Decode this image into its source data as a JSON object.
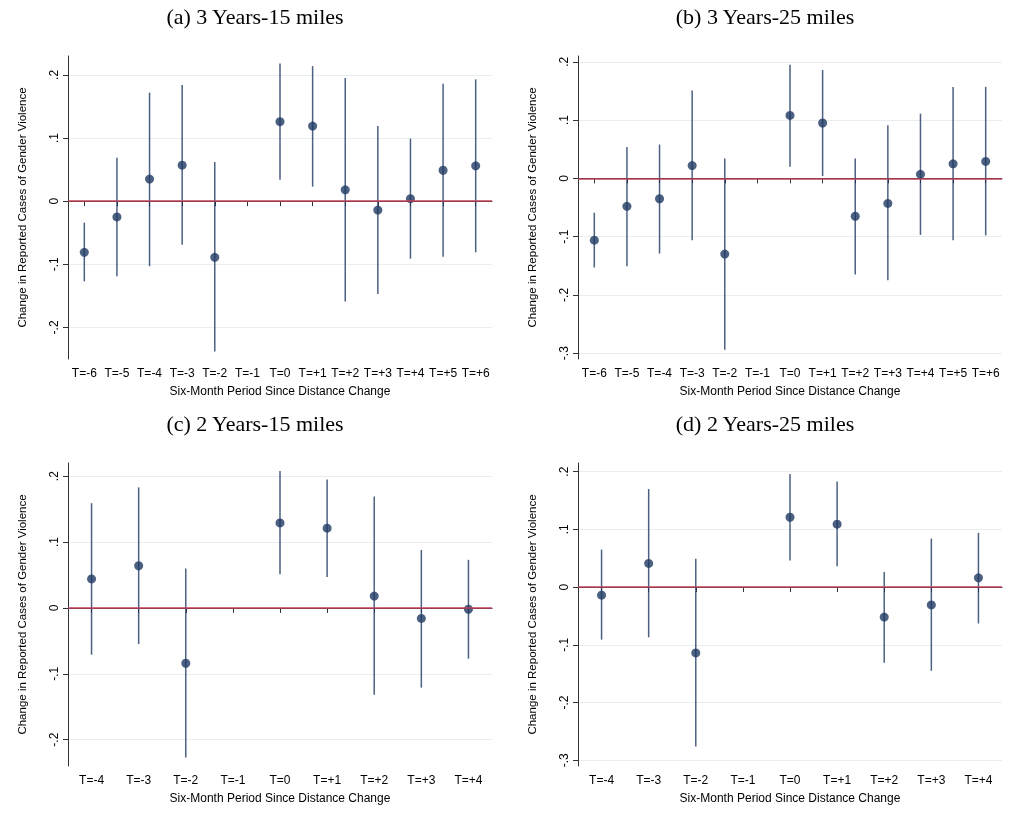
{
  "chart_data": [
    {
      "type": "scatter",
      "title": "(a) 3 Years-15 miles",
      "xlabel": "Six-Month Period Since Distance Change",
      "ylabel": "Change in Reported Cases of Gender Violence",
      "categories": [
        "T=-6",
        "T=-5",
        "T=-4",
        "T=-3",
        "T=-2",
        "T=-1",
        "T=0",
        "T=+1",
        "T=+2",
        "T=+3",
        "T=+4",
        "T=+5",
        "T=+6"
      ],
      "series": [
        {
          "color": "#1f3a63",
          "values": [
            -0.081,
            -0.025,
            0.035,
            0.057,
            -0.089,
            null,
            0.126,
            0.119,
            0.018,
            -0.014,
            0.004,
            0.049,
            0.056
          ],
          "errors": [
            [
              -0.127,
              -0.034
            ],
            [
              -0.119,
              0.069
            ],
            [
              -0.103,
              0.172
            ],
            [
              -0.069,
              0.184
            ],
            [
              -0.238,
              0.062
            ],
            null,
            [
              0.034,
              0.218
            ],
            [
              0.023,
              0.214
            ],
            [
              -0.159,
              0.195
            ],
            [
              -0.147,
              0.119
            ],
            [
              -0.091,
              0.099
            ],
            [
              -0.088,
              0.186
            ],
            [
              -0.081,
              0.193
            ]
          ]
        }
      ],
      "ylim": [
        -0.25,
        0.23
      ],
      "yticks": [
        {
          "value": -0.2,
          "label": "-.2"
        },
        {
          "value": -0.1,
          "label": "-.1"
        },
        {
          "value": 0,
          "label": "0"
        },
        {
          "value": 0.1,
          "label": ".1"
        },
        {
          "value": 0.2,
          "label": ".2"
        }
      ],
      "ref_lines": [
        {
          "axis": "y",
          "value": 0,
          "color": "#c0405a"
        }
      ],
      "grid": "y",
      "marker": "circle"
    },
    {
      "type": "scatter",
      "title": "(b) 3 Years-25 miles",
      "xlabel": "Six-Month Period Since Distance Change",
      "ylabel": "Change in Reported Cases of Gender Violence",
      "categories": [
        "T=-6",
        "T=-5",
        "T=-4",
        "T=-3",
        "T=-2",
        "T=-1",
        "T=0",
        "T=+1",
        "T=+2",
        "T=+3",
        "T=+4",
        "T=+5",
        "T=+6"
      ],
      "series": [
        {
          "color": "#1f3a63",
          "values": [
            -0.106,
            -0.048,
            -0.035,
            0.022,
            -0.13,
            null,
            0.108,
            0.095,
            -0.065,
            -0.043,
            0.007,
            0.025,
            0.029
          ],
          "errors": [
            [
              -0.153,
              -0.059
            ],
            [
              -0.151,
              0.054
            ],
            [
              -0.129,
              0.058
            ],
            [
              -0.106,
              0.151
            ],
            [
              -0.294,
              0.034
            ],
            null,
            [
              0.02,
              0.195
            ],
            [
              0.004,
              0.186
            ],
            [
              -0.165,
              0.034
            ],
            [
              -0.175,
              0.091
            ],
            [
              -0.097,
              0.111
            ],
            [
              -0.106,
              0.157
            ],
            [
              -0.098,
              0.157
            ]
          ]
        }
      ],
      "ylim": [
        -0.31,
        0.21
      ],
      "yticks": [
        {
          "value": -0.3,
          "label": "-.3"
        },
        {
          "value": -0.2,
          "label": "-.2"
        },
        {
          "value": -0.1,
          "label": "-.1"
        },
        {
          "value": 0,
          "label": "0"
        },
        {
          "value": 0.1,
          "label": ".1"
        },
        {
          "value": 0.2,
          "label": ".2"
        }
      ],
      "ref_lines": [
        {
          "axis": "y",
          "value": 0,
          "color": "#c0405a"
        }
      ],
      "grid": "y",
      "marker": "circle"
    },
    {
      "type": "scatter",
      "title": "(c) 2 Years-15 miles",
      "xlabel": "Six-Month Period Since Distance Change",
      "ylabel": "Change in Reported Cases of Gender Violence",
      "categories": [
        "T=-4",
        "T=-3",
        "T=-2",
        "T=-1",
        "T=0",
        "T=+1",
        "T=+2",
        "T=+3",
        "T=+4"
      ],
      "series": [
        {
          "color": "#1f3a63",
          "values": [
            0.044,
            0.064,
            -0.084,
            null,
            0.129,
            0.121,
            0.018,
            -0.016,
            -0.002
          ],
          "errors": [
            [
              -0.071,
              0.159
            ],
            [
              -0.055,
              0.183
            ],
            [
              -0.227,
              0.06
            ],
            null,
            [
              0.051,
              0.208
            ],
            [
              0.047,
              0.195
            ],
            [
              -0.132,
              0.169
            ],
            [
              -0.121,
              0.088
            ],
            [
              -0.077,
              0.073
            ]
          ]
        }
      ],
      "ylim": [
        -0.24,
        0.22
      ],
      "yticks": [
        {
          "value": -0.2,
          "label": "-.2"
        },
        {
          "value": -0.1,
          "label": "-.1"
        },
        {
          "value": 0,
          "label": "0"
        },
        {
          "value": 0.1,
          "label": ".1"
        },
        {
          "value": 0.2,
          "label": ".2"
        }
      ],
      "ref_lines": [
        {
          "axis": "y",
          "value": 0,
          "color": "#c0405a"
        }
      ],
      "grid": "y",
      "marker": "circle"
    },
    {
      "type": "scatter",
      "title": "(d) 2 Years-25 miles",
      "xlabel": "Six-Month Period Since Distance Change",
      "ylabel": "Change in Reported Cases of Gender Violence",
      "categories": [
        "T=-4",
        "T=-3",
        "T=-2",
        "T=-1",
        "T=0",
        "T=+1",
        "T=+2",
        "T=+3",
        "T=+4"
      ],
      "series": [
        {
          "color": "#1f3a63",
          "values": [
            -0.014,
            0.041,
            -0.114,
            null,
            0.121,
            0.109,
            -0.052,
            -0.031,
            0.016
          ],
          "errors": [
            [
              -0.091,
              0.065
            ],
            [
              -0.087,
              0.17
            ],
            [
              -0.276,
              0.049
            ],
            null,
            [
              0.046,
              0.196
            ],
            [
              0.036,
              0.183
            ],
            [
              -0.131,
              0.026
            ],
            [
              -0.145,
              0.084
            ],
            [
              -0.063,
              0.094
            ]
          ]
        }
      ],
      "ylim": [
        -0.31,
        0.215
      ],
      "yticks": [
        {
          "value": -0.3,
          "label": "-.3"
        },
        {
          "value": -0.2,
          "label": "-.2"
        },
        {
          "value": -0.1,
          "label": "-.1"
        },
        {
          "value": 0,
          "label": "0"
        },
        {
          "value": 0.1,
          "label": ".1"
        },
        {
          "value": 0.2,
          "label": ".2"
        }
      ],
      "ref_lines": [
        {
          "axis": "y",
          "value": 0,
          "color": "#c0405a"
        }
      ],
      "grid": "y",
      "marker": "circle"
    }
  ]
}
